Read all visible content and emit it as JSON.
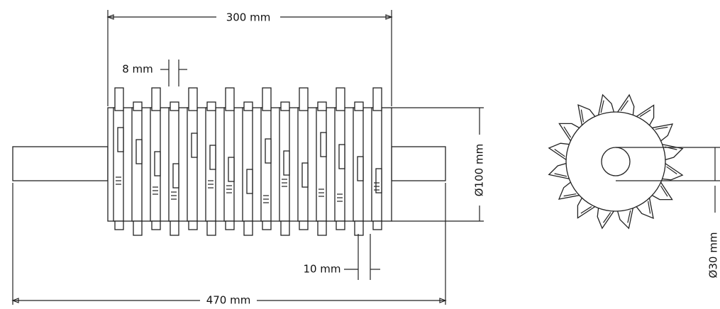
{
  "dimensions": [
    "300 mm",
    "8 mm",
    "Ø100 mm",
    "10 mm",
    "470 mm",
    "Ø30 mm"
  ]
}
